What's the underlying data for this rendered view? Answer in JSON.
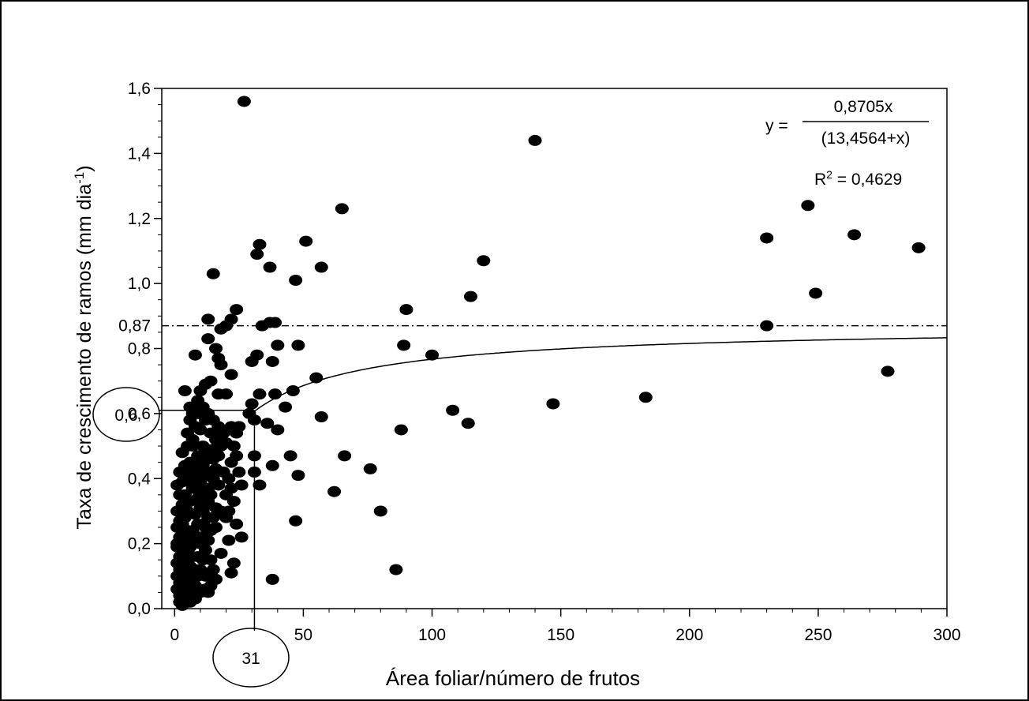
{
  "chart_data": {
    "type": "scatter",
    "xlabel": "Área foliar/número de frutos",
    "ylabel": "Taxa de crescimento de ramos (mm dia",
    "ylabel_sup": "-1",
    "ylabel_close": ")",
    "xlim": [
      -5,
      300
    ],
    "ylim": [
      0,
      1.6
    ],
    "x_ticks": [
      0,
      50,
      100,
      150,
      200,
      250,
      300
    ],
    "x_tick_labels": [
      "0",
      "50",
      "100",
      "150",
      "200",
      "250",
      "300"
    ],
    "y_ticks": [
      0,
      0.2,
      0.4,
      0.6,
      0.8,
      1.0,
      1.2,
      1.4,
      1.6
    ],
    "y_tick_labels": [
      "0,0",
      "0,2",
      "0,4",
      "0,6",
      "0,8",
      "1,0",
      "1,2",
      "1,4",
      "1,6"
    ],
    "y_extra_tick_label": "0,87",
    "y_extra_tick_value": 0.87,
    "grid": false,
    "fit": {
      "a": 0.8705,
      "b": 13.4564,
      "eq_prefix": "y = ",
      "numerator": "0,8705x",
      "denominator": "(13,4564+x)",
      "r2_label": "R",
      "r2_sup": "2",
      "r2_value": " = 0,4629"
    },
    "asymptote": 0.87,
    "marker": {
      "x": 31,
      "y": 0.61,
      "x_label": "31",
      "y_label": "0,6"
    },
    "points": [
      [
        27,
        1.56
      ],
      [
        140,
        1.44
      ],
      [
        65,
        1.23
      ],
      [
        246,
        1.24
      ],
      [
        230,
        1.14
      ],
      [
        264,
        1.15
      ],
      [
        289,
        1.11
      ],
      [
        51,
        1.13
      ],
      [
        33,
        1.12
      ],
      [
        32,
        1.09
      ],
      [
        37,
        1.05
      ],
      [
        57,
        1.05
      ],
      [
        120,
        1.07
      ],
      [
        15,
        1.03
      ],
      [
        47,
        1.01
      ],
      [
        115,
        0.96
      ],
      [
        249,
        0.97
      ],
      [
        24,
        0.92
      ],
      [
        90,
        0.92
      ],
      [
        13,
        0.89
      ],
      [
        22,
        0.89
      ],
      [
        37,
        0.88
      ],
      [
        39,
        0.88
      ],
      [
        34,
        0.87
      ],
      [
        230,
        0.87
      ],
      [
        18,
        0.86
      ],
      [
        20,
        0.87
      ],
      [
        13,
        0.83
      ],
      [
        40,
        0.81
      ],
      [
        48,
        0.81
      ],
      [
        89,
        0.81
      ],
      [
        16,
        0.8
      ],
      [
        8,
        0.78
      ],
      [
        32,
        0.78
      ],
      [
        100,
        0.78
      ],
      [
        17,
        0.77
      ],
      [
        18,
        0.75
      ],
      [
        30,
        0.76
      ],
      [
        38,
        0.76
      ],
      [
        277,
        0.73
      ],
      [
        22,
        0.72
      ],
      [
        55,
        0.71
      ],
      [
        14,
        0.7
      ],
      [
        12,
        0.69
      ],
      [
        10,
        0.67
      ],
      [
        17,
        0.66
      ],
      [
        20,
        0.66
      ],
      [
        39,
        0.66
      ],
      [
        46,
        0.67
      ],
      [
        4,
        0.67
      ],
      [
        33,
        0.66
      ],
      [
        183,
        0.65
      ],
      [
        147,
        0.63
      ],
      [
        43,
        0.62
      ],
      [
        30,
        0.63
      ],
      [
        6,
        0.62
      ],
      [
        108,
        0.61
      ],
      [
        57,
        0.59
      ],
      [
        29,
        0.6
      ],
      [
        15,
        0.58
      ],
      [
        114,
        0.57
      ],
      [
        36,
        0.57
      ],
      [
        31,
        0.58
      ],
      [
        40,
        0.55
      ],
      [
        88,
        0.55
      ],
      [
        22,
        0.56
      ],
      [
        24,
        0.54
      ],
      [
        66,
        0.47
      ],
      [
        31,
        0.47
      ],
      [
        45,
        0.47
      ],
      [
        76,
        0.43
      ],
      [
        38,
        0.44
      ],
      [
        31,
        0.42
      ],
      [
        48,
        0.41
      ],
      [
        62,
        0.36
      ],
      [
        33,
        0.38
      ],
      [
        80,
        0.3
      ],
      [
        47,
        0.27
      ],
      [
        26,
        0.22
      ],
      [
        24,
        0.26
      ],
      [
        21,
        0.21
      ],
      [
        23,
        0.14
      ],
      [
        86,
        0.12
      ],
      [
        22,
        0.11
      ],
      [
        38,
        0.09
      ],
      [
        14,
        0.07
      ],
      [
        12,
        0.1
      ],
      [
        18,
        0.17
      ],
      [
        10,
        0.2
      ],
      [
        16,
        0.25
      ],
      [
        20,
        0.28
      ],
      [
        13,
        0.33
      ],
      [
        17,
        0.38
      ],
      [
        19,
        0.42
      ],
      [
        15,
        0.46
      ],
      [
        11,
        0.5
      ],
      [
        14,
        0.54
      ],
      [
        8,
        0.56
      ],
      [
        9,
        0.6
      ],
      [
        6,
        0.58
      ],
      [
        5,
        0.54
      ],
      [
        7,
        0.5
      ],
      [
        3,
        0.48
      ],
      [
        4,
        0.44
      ],
      [
        2,
        0.42
      ],
      [
        3,
        0.39
      ],
      [
        1,
        0.38
      ],
      [
        2,
        0.35
      ],
      [
        3,
        0.32
      ],
      [
        1,
        0.3
      ],
      [
        2,
        0.27
      ],
      [
        1,
        0.25
      ],
      [
        2,
        0.22
      ],
      [
        1,
        0.2
      ],
      [
        3,
        0.18
      ],
      [
        2,
        0.16
      ],
      [
        1,
        0.14
      ],
      [
        2,
        0.12
      ],
      [
        1,
        0.1
      ],
      [
        2,
        0.08
      ],
      [
        1,
        0.06
      ],
      [
        3,
        0.05
      ],
      [
        2,
        0.04
      ],
      [
        4,
        0.03
      ],
      [
        3,
        0.01
      ],
      [
        5,
        0.06
      ],
      [
        4,
        0.09
      ],
      [
        6,
        0.11
      ],
      [
        5,
        0.14
      ],
      [
        7,
        0.16
      ],
      [
        6,
        0.19
      ],
      [
        8,
        0.21
      ],
      [
        7,
        0.24
      ],
      [
        9,
        0.26
      ],
      [
        8,
        0.29
      ],
      [
        10,
        0.31
      ],
      [
        9,
        0.34
      ],
      [
        11,
        0.36
      ],
      [
        10,
        0.39
      ],
      [
        12,
        0.41
      ],
      [
        11,
        0.44
      ],
      [
        13,
        0.46
      ],
      [
        12,
        0.49
      ],
      [
        7,
        0.52
      ],
      [
        9,
        0.47
      ],
      [
        6,
        0.45
      ],
      [
        8,
        0.43
      ],
      [
        5,
        0.41
      ],
      [
        7,
        0.37
      ],
      [
        4,
        0.35
      ],
      [
        6,
        0.33
      ],
      [
        5,
        0.3
      ],
      [
        4,
        0.28
      ],
      [
        3,
        0.26
      ],
      [
        5,
        0.24
      ],
      [
        4,
        0.21
      ],
      [
        6,
        0.23
      ],
      [
        3,
        0.23
      ],
      [
        4,
        0.19
      ],
      [
        5,
        0.17
      ],
      [
        3,
        0.15
      ],
      [
        4,
        0.13
      ],
      [
        6,
        0.13
      ],
      [
        5,
        0.11
      ],
      [
        3,
        0.09
      ],
      [
        4,
        0.07
      ],
      [
        6,
        0.07
      ],
      [
        7,
        0.09
      ],
      [
        8,
        0.07
      ],
      [
        9,
        0.1
      ],
      [
        10,
        0.12
      ],
      [
        11,
        0.15
      ],
      [
        12,
        0.18
      ],
      [
        13,
        0.21
      ],
      [
        14,
        0.24
      ],
      [
        15,
        0.28
      ],
      [
        16,
        0.31
      ],
      [
        14,
        0.35
      ],
      [
        15,
        0.4
      ],
      [
        16,
        0.43
      ],
      [
        17,
        0.47
      ],
      [
        18,
        0.5
      ],
      [
        19,
        0.54
      ],
      [
        18,
        0.3
      ],
      [
        20,
        0.35
      ],
      [
        21,
        0.4
      ],
      [
        22,
        0.45
      ],
      [
        23,
        0.5
      ],
      [
        24,
        0.47
      ],
      [
        25,
        0.42
      ],
      [
        26,
        0.38
      ],
      [
        23,
        0.33
      ],
      [
        22,
        0.37
      ],
      [
        21,
        0.3
      ],
      [
        25,
        0.56
      ],
      [
        23,
        0.55
      ],
      [
        20,
        0.51
      ],
      [
        10,
        0.55
      ],
      [
        12,
        0.58
      ],
      [
        13,
        0.6
      ],
      [
        11,
        0.62
      ],
      [
        9,
        0.64
      ],
      [
        7,
        0.6
      ],
      [
        8,
        0.45
      ],
      [
        9,
        0.4
      ],
      [
        10,
        0.35
      ],
      [
        11,
        0.3
      ],
      [
        12,
        0.25
      ],
      [
        13,
        0.28
      ],
      [
        14,
        0.15
      ],
      [
        15,
        0.12
      ],
      [
        16,
        0.09
      ],
      [
        7,
        0.04
      ],
      [
        8,
        0.12
      ],
      [
        9,
        0.16
      ],
      [
        10,
        0.22
      ],
      [
        11,
        0.26
      ],
      [
        12,
        0.32
      ],
      [
        13,
        0.37
      ],
      [
        14,
        0.42
      ],
      [
        15,
        0.49
      ],
      [
        16,
        0.52
      ],
      [
        17,
        0.56
      ],
      [
        5,
        0.5
      ],
      [
        6,
        0.4
      ],
      [
        2,
        0.3
      ],
      [
        1,
        0.19
      ],
      [
        3,
        0.11
      ],
      [
        2,
        0.02
      ],
      [
        6,
        0.02
      ],
      [
        8,
        0.03
      ],
      [
        10,
        0.05
      ],
      [
        12,
        0.06
      ],
      [
        13,
        0.05
      ]
    ]
  }
}
